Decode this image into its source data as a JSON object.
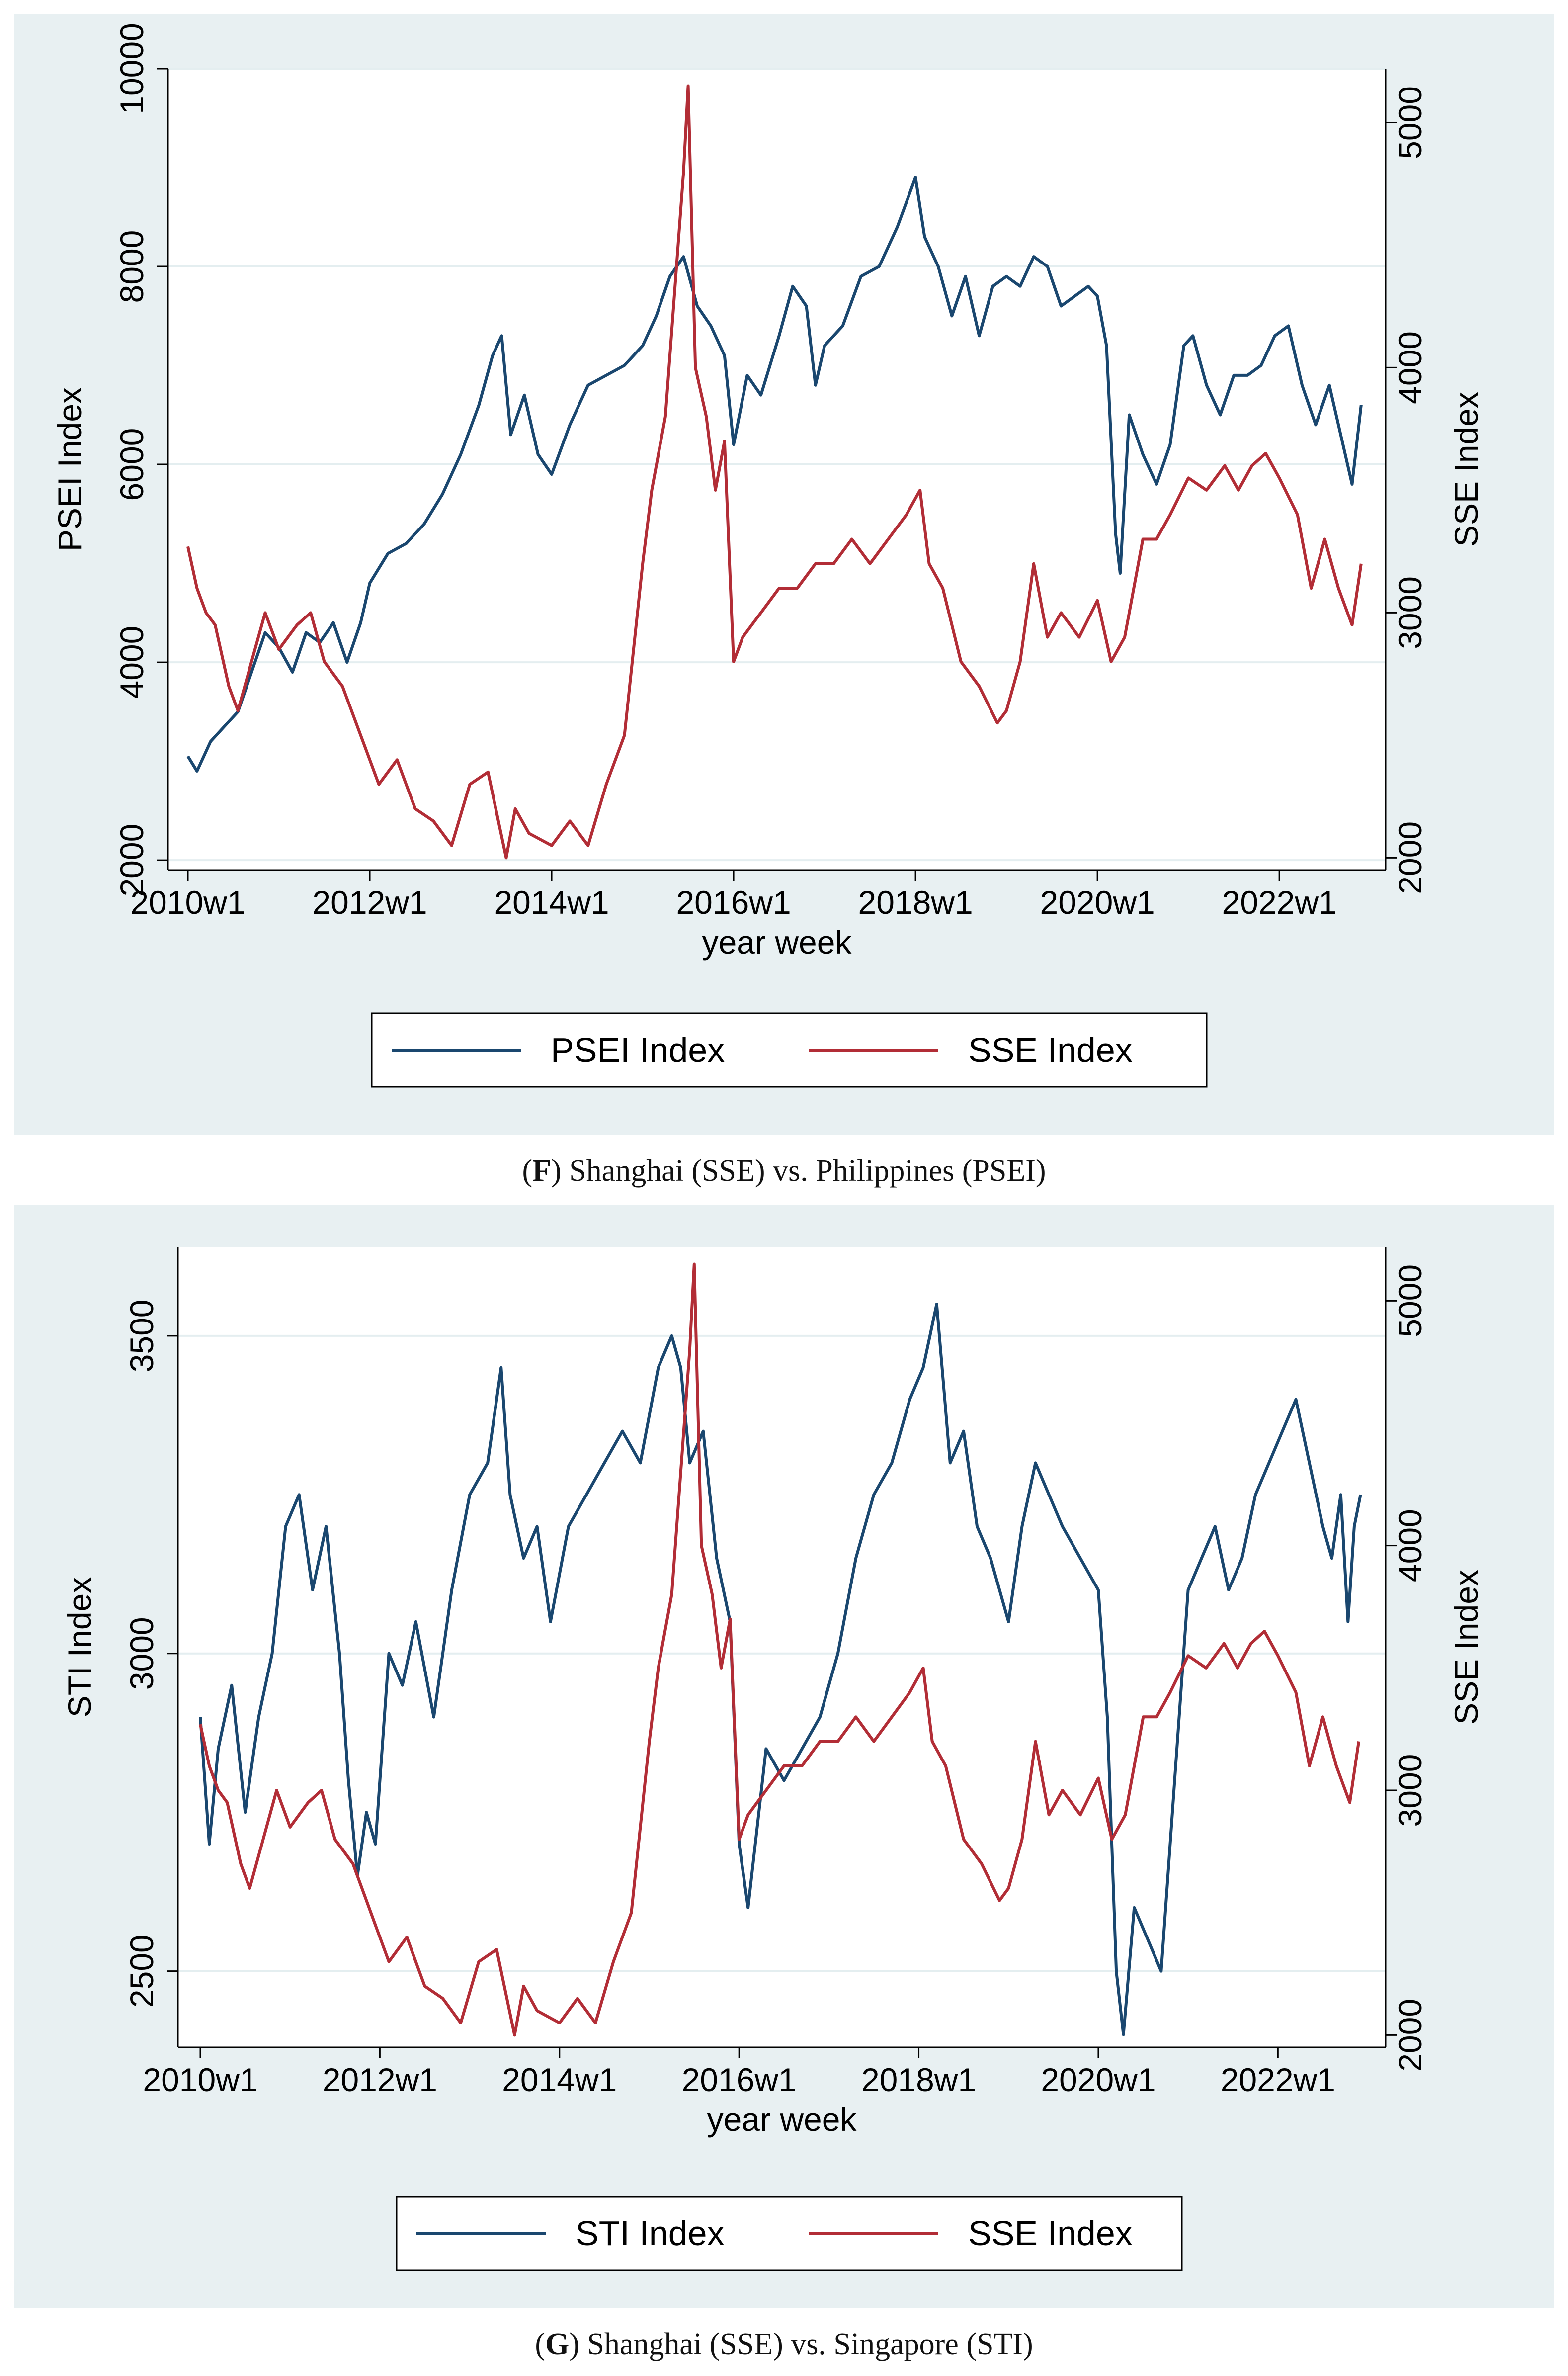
{
  "chart_data": [
    {
      "id": "F",
      "type": "line",
      "title": "(F) Shanghai (SSE) vs. Philippines (PSEI)",
      "caption_letter": "F",
      "caption_text": "Shanghai (SSE) vs. Philippines (PSEI)",
      "xlabel": "year week",
      "ylabel_left": "PSEI Index",
      "ylabel_right": "SSE Index",
      "x_range": [
        2010.0,
        2022.95
      ],
      "x_ticks": [
        2010,
        2012,
        2014,
        2016,
        2018,
        2020,
        2022
      ],
      "x_tick_labels": [
        "2010w1",
        "2012w1",
        "2014w1",
        "2016w1",
        "2018w1",
        "2020w1",
        "2022w1"
      ],
      "ylim_left": [
        1900,
        10000
      ],
      "yticks_left": [
        2000,
        4000,
        6000,
        8000,
        10000
      ],
      "ylim_right": [
        1950,
        5220
      ],
      "yticks_right": [
        2000,
        3000,
        4000,
        5000
      ],
      "grid": true,
      "legend_position": "bottom",
      "series": [
        {
          "name": "PSEI Index",
          "axis": "left",
          "color": "#1a476f",
          "x": [
            2010.0,
            2010.1,
            2010.25,
            2010.4,
            2010.55,
            2010.7,
            2010.85,
            2011.0,
            2011.15,
            2011.3,
            2011.45,
            2011.6,
            2011.75,
            2011.9,
            2012.0,
            2012.2,
            2012.4,
            2012.6,
            2012.8,
            2013.0,
            2013.2,
            2013.35,
            2013.45,
            2013.55,
            2013.7,
            2013.85,
            2014.0,
            2014.2,
            2014.4,
            2014.6,
            2014.8,
            2015.0,
            2015.15,
            2015.3,
            2015.45,
            2015.6,
            2015.75,
            2015.9,
            2016.0,
            2016.15,
            2016.3,
            2016.5,
            2016.65,
            2016.8,
            2016.9,
            2017.0,
            2017.2,
            2017.4,
            2017.6,
            2017.8,
            2018.0,
            2018.1,
            2018.25,
            2018.4,
            2018.55,
            2018.7,
            2018.85,
            2019.0,
            2019.15,
            2019.3,
            2019.45,
            2019.6,
            2019.75,
            2019.9,
            2020.0,
            2020.1,
            2020.2,
            2020.25,
            2020.35,
            2020.5,
            2020.65,
            2020.8,
            2020.95,
            2021.05,
            2021.2,
            2021.35,
            2021.5,
            2021.65,
            2021.8,
            2021.95,
            2022.1,
            2022.25,
            2022.4,
            2022.55,
            2022.7,
            2022.8,
            2022.9
          ],
          "values": [
            3050,
            2900,
            3200,
            3350,
            3500,
            3900,
            4300,
            4150,
            3900,
            4300,
            4200,
            4400,
            4000,
            4400,
            4800,
            5100,
            5200,
            5400,
            5700,
            6100,
            6600,
            7100,
            7300,
            6300,
            6700,
            6100,
            5900,
            6400,
            6800,
            6900,
            7000,
            7200,
            7500,
            7900,
            8100,
            7600,
            7400,
            7100,
            6200,
            6900,
            6700,
            7300,
            7800,
            7600,
            6800,
            7200,
            7400,
            7900,
            8000,
            8400,
            8900,
            8300,
            8000,
            7500,
            7900,
            7300,
            7800,
            7900,
            7800,
            8100,
            8000,
            7600,
            7700,
            7800,
            7700,
            7200,
            5300,
            4900,
            6500,
            6100,
            5800,
            6200,
            7200,
            7300,
            6800,
            6500,
            6900,
            6900,
            7000,
            7300,
            7400,
            6800,
            6400,
            6800,
            6200,
            5800,
            6600
          ]
        },
        {
          "name": "SSE Index",
          "axis": "right",
          "color": "#b22d36",
          "x": [
            2010.0,
            2010.1,
            2010.2,
            2010.3,
            2010.45,
            2010.55,
            2010.7,
            2010.85,
            2011.0,
            2011.2,
            2011.35,
            2011.5,
            2011.7,
            2011.9,
            2012.1,
            2012.3,
            2012.5,
            2012.7,
            2012.9,
            2013.1,
            2013.3,
            2013.5,
            2013.6,
            2013.75,
            2014.0,
            2014.2,
            2014.4,
            2014.6,
            2014.8,
            2015.0,
            2015.1,
            2015.25,
            2015.35,
            2015.45,
            2015.5,
            2015.58,
            2015.7,
            2015.8,
            2015.9,
            2016.0,
            2016.1,
            2016.3,
            2016.5,
            2016.7,
            2016.9,
            2017.1,
            2017.3,
            2017.5,
            2017.7,
            2017.9,
            2018.05,
            2018.15,
            2018.3,
            2018.5,
            2018.7,
            2018.9,
            2019.0,
            2019.15,
            2019.3,
            2019.45,
            2019.6,
            2019.8,
            2020.0,
            2020.15,
            2020.3,
            2020.5,
            2020.65,
            2020.8,
            2021.0,
            2021.2,
            2021.4,
            2021.55,
            2021.7,
            2021.85,
            2022.0,
            2022.2,
            2022.35,
            2022.5,
            2022.65,
            2022.8,
            2022.9
          ],
          "values": [
            3270,
            3100,
            3000,
            2950,
            2700,
            2600,
            2800,
            3000,
            2850,
            2950,
            3000,
            2800,
            2700,
            2500,
            2300,
            2400,
            2200,
            2150,
            2050,
            2300,
            2350,
            2000,
            2200,
            2100,
            2050,
            2150,
            2050,
            2300,
            2500,
            3200,
            3500,
            3800,
            4300,
            4800,
            5150,
            4000,
            3800,
            3500,
            3700,
            2800,
            2900,
            3000,
            3100,
            3100,
            3200,
            3200,
            3300,
            3200,
            3300,
            3400,
            3500,
            3200,
            3100,
            2800,
            2700,
            2550,
            2600,
            2800,
            3200,
            2900,
            3000,
            2900,
            3050,
            2800,
            2900,
            3300,
            3300,
            3400,
            3550,
            3500,
            3600,
            3500,
            3600,
            3650,
            3550,
            3400,
            3100,
            3300,
            3100,
            2950,
            3200
          ]
        }
      ]
    },
    {
      "id": "G",
      "type": "line",
      "title": "(G) Shanghai (SSE) vs. Singapore (STI)",
      "caption_letter": "G",
      "caption_text": "Shanghai (SSE) vs. Singapore (STI)",
      "xlabel": "year week",
      "ylabel_left": "STI Index",
      "ylabel_right": "SSE Index",
      "x_range": [
        2010.0,
        2022.95
      ],
      "x_ticks": [
        2010,
        2012,
        2014,
        2016,
        2018,
        2020,
        2022
      ],
      "x_tick_labels": [
        "2010w1",
        "2012w1",
        "2014w1",
        "2016w1",
        "2018w1",
        "2020w1",
        "2022w1"
      ],
      "ylim_left": [
        2380,
        3640
      ],
      "yticks_left": [
        2500,
        3000,
        3500
      ],
      "ylim_right": [
        1950,
        5220
      ],
      "yticks_right": [
        2000,
        3000,
        4000,
        5000
      ],
      "grid": true,
      "legend_position": "bottom",
      "series": [
        {
          "name": "STI Index",
          "axis": "left",
          "color": "#1a476f",
          "x": [
            2010.0,
            2010.1,
            2010.2,
            2010.35,
            2010.5,
            2010.65,
            2010.8,
            2010.95,
            2011.1,
            2011.25,
            2011.4,
            2011.55,
            2011.65,
            2011.75,
            2011.85,
            2011.95,
            2012.1,
            2012.25,
            2012.4,
            2012.6,
            2012.8,
            2013.0,
            2013.2,
            2013.35,
            2013.45,
            2013.6,
            2013.75,
            2013.9,
            2014.1,
            2014.3,
            2014.5,
            2014.7,
            2014.9,
            2015.1,
            2015.25,
            2015.35,
            2015.45,
            2015.6,
            2015.75,
            2015.9,
            2016.0,
            2016.1,
            2016.3,
            2016.5,
            2016.7,
            2016.9,
            2017.1,
            2017.3,
            2017.5,
            2017.7,
            2017.9,
            2018.05,
            2018.2,
            2018.35,
            2018.5,
            2018.65,
            2018.8,
            2019.0,
            2019.15,
            2019.3,
            2019.45,
            2019.6,
            2019.8,
            2020.0,
            2020.1,
            2020.2,
            2020.28,
            2020.4,
            2020.55,
            2020.7,
            2020.85,
            2021.0,
            2021.15,
            2021.3,
            2021.45,
            2021.6,
            2021.75,
            2021.9,
            2022.05,
            2022.2,
            2022.35,
            2022.5,
            2022.6,
            2022.7,
            2022.78,
            2022.85,
            2022.92
          ],
          "values": [
            2900,
            2700,
            2850,
            2950,
            2750,
            2900,
            3000,
            3200,
            3250,
            3100,
            3200,
            3000,
            2800,
            2650,
            2750,
            2700,
            3000,
            2950,
            3050,
            2900,
            3100,
            3250,
            3300,
            3450,
            3250,
            3150,
            3200,
            3050,
            3200,
            3250,
            3300,
            3350,
            3300,
            3450,
            3500,
            3450,
            3300,
            3350,
            3150,
            3050,
            2700,
            2600,
            2850,
            2800,
            2850,
            2900,
            3000,
            3150,
            3250,
            3300,
            3400,
            3450,
            3550,
            3300,
            3350,
            3200,
            3150,
            3050,
            3200,
            3300,
            3250,
            3200,
            3150,
            3100,
            2900,
            2500,
            2400,
            2600,
            2550,
            2500,
            2800,
            3100,
            3150,
            3200,
            3100,
            3150,
            3250,
            3300,
            3350,
            3400,
            3300,
            3200,
            3150,
            3250,
            3050,
            3200,
            3250
          ]
        },
        {
          "name": "SSE Index",
          "axis": "right",
          "color": "#b22d36",
          "x": [
            2010.0,
            2010.1,
            2010.2,
            2010.3,
            2010.45,
            2010.55,
            2010.7,
            2010.85,
            2011.0,
            2011.2,
            2011.35,
            2011.5,
            2011.7,
            2011.9,
            2012.1,
            2012.3,
            2012.5,
            2012.7,
            2012.9,
            2013.1,
            2013.3,
            2013.5,
            2013.6,
            2013.75,
            2014.0,
            2014.2,
            2014.4,
            2014.6,
            2014.8,
            2015.0,
            2015.1,
            2015.25,
            2015.35,
            2015.45,
            2015.5,
            2015.58,
            2015.7,
            2015.8,
            2015.9,
            2016.0,
            2016.1,
            2016.3,
            2016.5,
            2016.7,
            2016.9,
            2017.1,
            2017.3,
            2017.5,
            2017.7,
            2017.9,
            2018.05,
            2018.15,
            2018.3,
            2018.5,
            2018.7,
            2018.9,
            2019.0,
            2019.15,
            2019.3,
            2019.45,
            2019.6,
            2019.8,
            2020.0,
            2020.15,
            2020.3,
            2020.5,
            2020.65,
            2020.8,
            2021.0,
            2021.2,
            2021.4,
            2021.55,
            2021.7,
            2021.85,
            2022.0,
            2022.2,
            2022.35,
            2022.5,
            2022.65,
            2022.8,
            2022.9
          ],
          "values": [
            3270,
            3100,
            3000,
            2950,
            2700,
            2600,
            2800,
            3000,
            2850,
            2950,
            3000,
            2800,
            2700,
            2500,
            2300,
            2400,
            2200,
            2150,
            2050,
            2300,
            2350,
            2000,
            2200,
            2100,
            2050,
            2150,
            2050,
            2300,
            2500,
            3200,
            3500,
            3800,
            4300,
            4800,
            5150,
            4000,
            3800,
            3500,
            3700,
            2800,
            2900,
            3000,
            3100,
            3100,
            3200,
            3200,
            3300,
            3200,
            3300,
            3400,
            3500,
            3200,
            3100,
            2800,
            2700,
            2550,
            2600,
            2800,
            3200,
            2900,
            3000,
            2900,
            3050,
            2800,
            2900,
            3300,
            3300,
            3400,
            3550,
            3500,
            3600,
            3500,
            3600,
            3650,
            3550,
            3400,
            3100,
            3300,
            3100,
            2950,
            3200
          ]
        }
      ]
    }
  ]
}
